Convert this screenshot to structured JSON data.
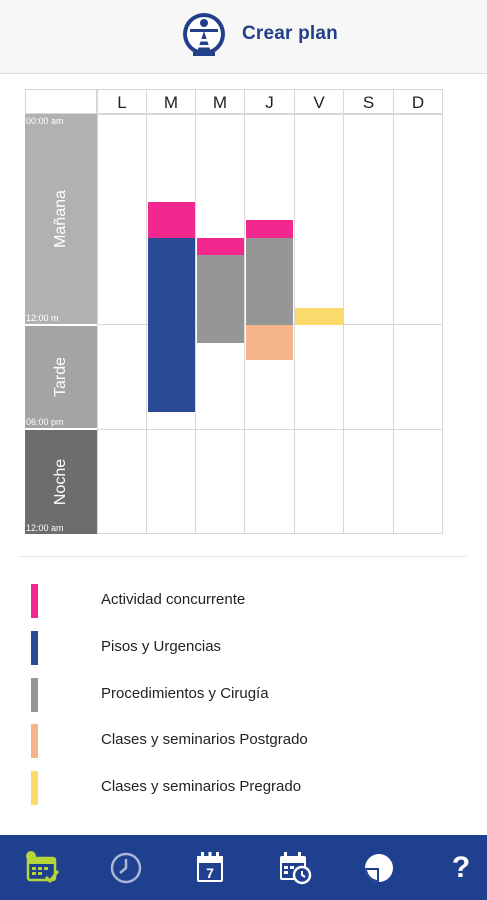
{
  "header": {
    "title": "Crear plan",
    "logo_icon": "institution-logo-icon"
  },
  "days": [
    "L",
    "M",
    "M",
    "J",
    "V",
    "S",
    "D"
  ],
  "periods": [
    {
      "label": "Mañana",
      "start_time": "00:00 am",
      "end_time": "12:00 m",
      "color": "#b1b1b1"
    },
    {
      "label": "Tarde",
      "start_time": "",
      "end_time": "06:00 pm",
      "color": "#a4a4a4"
    },
    {
      "label": "Noche",
      "start_time": "",
      "end_time": "12:00 am",
      "color": "#6d6d6d"
    }
  ],
  "legend": [
    {
      "label": "Actividad concurrente",
      "color": "#f2288f"
    },
    {
      "label": "Pisos y Urgencias",
      "color": "#2b4a95"
    },
    {
      "label": "Procedimientos y Cirugía",
      "color": "#969696"
    },
    {
      "label": "Clases y seminarios Postgrado",
      "color": "#f5b48a"
    },
    {
      "label": "Clases y seminarios Pregrado",
      "color": "#fbd96a"
    }
  ],
  "nav": {
    "items": [
      {
        "icon": "calendar-check-icon",
        "active": true
      },
      {
        "icon": "clock-icon",
        "active": false
      },
      {
        "icon": "calendar-day-icon",
        "day_number": "7",
        "active": false
      },
      {
        "icon": "calendar-clock-icon",
        "active": false
      },
      {
        "icon": "pie-chart-icon",
        "active": false
      },
      {
        "icon": "help-icon",
        "label": "?",
        "active": false
      }
    ]
  }
}
